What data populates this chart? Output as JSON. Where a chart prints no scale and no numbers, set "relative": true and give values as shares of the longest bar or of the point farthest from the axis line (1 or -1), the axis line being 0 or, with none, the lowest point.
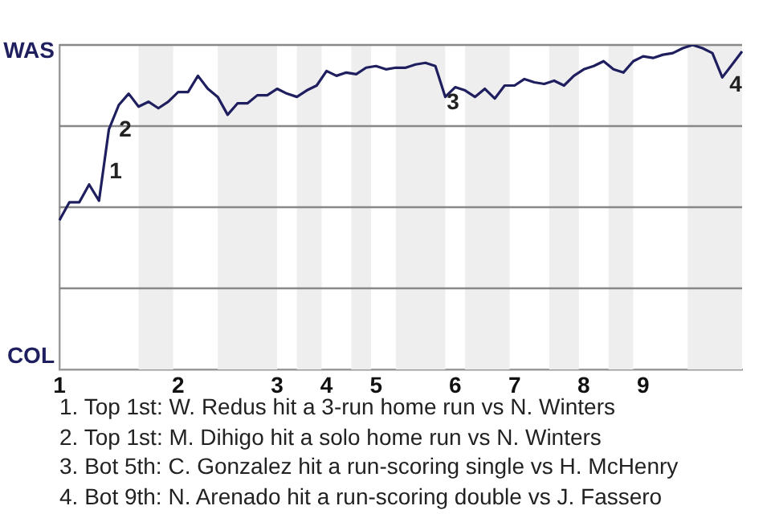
{
  "chart_data": {
    "type": "line",
    "relative": true,
    "categories": [
      "1",
      null,
      null,
      null,
      null,
      null,
      null,
      null,
      null,
      null,
      null,
      null,
      "2",
      null,
      null,
      null,
      null,
      null,
      null,
      null,
      null,
      null,
      "3",
      null,
      null,
      null,
      null,
      "4",
      null,
      null,
      null,
      null,
      "5",
      null,
      null,
      null,
      null,
      null,
      null,
      null,
      "6",
      null,
      null,
      null,
      null,
      null,
      "7",
      null,
      null,
      null,
      null,
      null,
      null,
      "8",
      null,
      null,
      null,
      null,
      null,
      "9",
      null,
      null,
      null,
      null,
      null,
      null,
      null,
      null,
      null,
      null
    ],
    "series": [
      {
        "color": "#1f1f5f",
        "values": [
          0.46,
          0.515,
          0.515,
          0.57,
          0.52,
          0.74,
          0.815,
          0.85,
          0.81,
          0.825,
          0.805,
          0.825,
          0.855,
          0.855,
          0.905,
          0.865,
          0.84,
          0.785,
          0.82,
          0.82,
          0.845,
          0.845,
          0.865,
          0.85,
          0.84,
          0.86,
          0.875,
          0.92,
          0.905,
          0.915,
          0.91,
          0.93,
          0.935,
          0.925,
          0.93,
          0.93,
          0.94,
          0.945,
          0.935,
          0.84,
          0.87,
          0.86,
          0.84,
          0.865,
          0.835,
          0.875,
          0.875,
          0.895,
          0.885,
          0.88,
          0.89,
          0.875,
          0.905,
          0.925,
          0.935,
          0.95,
          0.925,
          0.915,
          0.95,
          0.965,
          0.96,
          0.97,
          0.975,
          0.99,
          1.0,
          0.99,
          0.975,
          0.9,
          0.94,
          0.98
        ]
      }
    ],
    "ref_lines": [
      {
        "axis": "y",
        "value": 1,
        "color": "#888888"
      },
      {
        "axis": "y",
        "value": 0.75,
        "color": "#888888"
      },
      {
        "axis": "y",
        "value": 0.5,
        "color": "#888888"
      },
      {
        "axis": "y",
        "value": 0.25,
        "color": "#888888"
      }
    ],
    "annotations": [
      "WAS",
      "COL",
      "1",
      "2",
      "3",
      "4",
      "1. Top 1st: W. Redus hit a 3-run home run vs N. Winters",
      "2. Top 1st: M. Dihigo hit a solo home run vs N. Winters",
      "3. Bot 5th: C. Gonzalez hit a run-scoring single vs H. McHenry",
      "4. Bot 9th: N. Arenado hit a run-scoring double vs J. Fassero"
    ],
    "legend": false,
    "grid": false,
    "marker": "none",
    "line_style": "solid"
  }
}
